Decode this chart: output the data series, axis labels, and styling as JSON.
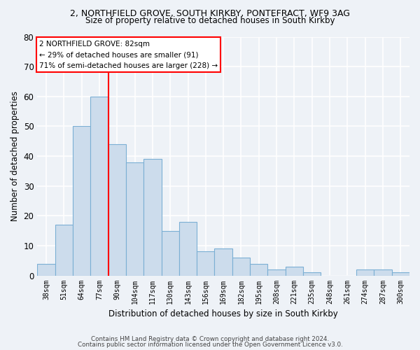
{
  "title1": "2, NORTHFIELD GROVE, SOUTH KIRKBY, PONTEFRACT, WF9 3AG",
  "title2": "Size of property relative to detached houses in South Kirkby",
  "xlabel": "Distribution of detached houses by size in South Kirkby",
  "ylabel": "Number of detached properties",
  "categories": [
    "38sqm",
    "51sqm",
    "64sqm",
    "77sqm",
    "90sqm",
    "104sqm",
    "117sqm",
    "130sqm",
    "143sqm",
    "156sqm",
    "169sqm",
    "182sqm",
    "195sqm",
    "208sqm",
    "221sqm",
    "235sqm",
    "248sqm",
    "261sqm",
    "274sqm",
    "287sqm",
    "300sqm"
  ],
  "values": [
    4,
    17,
    50,
    60,
    44,
    38,
    39,
    15,
    18,
    8,
    9,
    6,
    4,
    2,
    3,
    1,
    0,
    0,
    2,
    2,
    1
  ],
  "bar_color": "#ccdcec",
  "bar_edge_color": "#7bafd4",
  "annotation_box_text": "2 NORTHFIELD GROVE: 82sqm\n← 29% of detached houses are smaller (91)\n71% of semi-detached houses are larger (228) →",
  "footer1": "Contains HM Land Registry data © Crown copyright and database right 2024.",
  "footer2": "Contains public sector information licensed under the Open Government Licence v3.0.",
  "ylim": [
    0,
    80
  ],
  "bg_color": "#eef2f7",
  "plot_bg_color": "#eef2f7",
  "grid_color": "#ffffff",
  "red_line_x": 3.5
}
